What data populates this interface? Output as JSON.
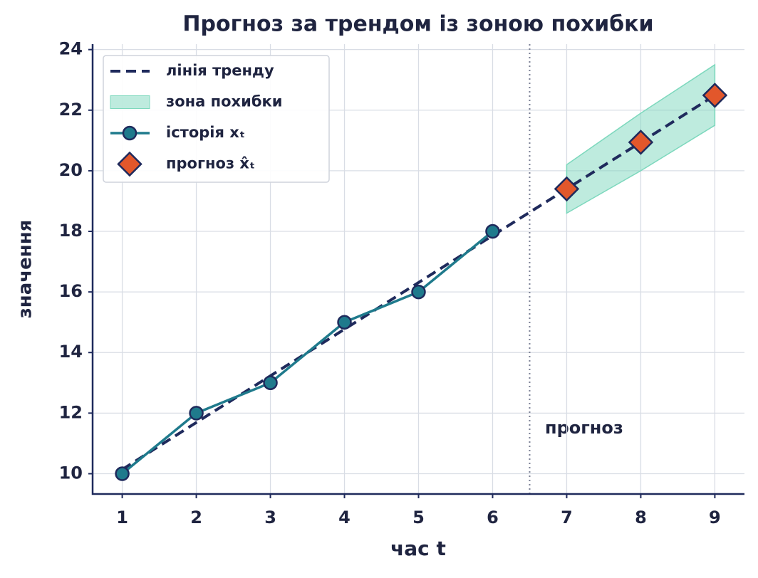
{
  "chart_data": {
    "type": "line",
    "title": "Прогноз за трендом із зоною похибки",
    "x_label": "час t",
    "y_label": "значення",
    "xlim": [
      0.6,
      9.4
    ],
    "ylim": [
      9.33,
      24.18
    ],
    "xticks": [
      1,
      2,
      3,
      4,
      5,
      6,
      7,
      8,
      9
    ],
    "yticks": [
      10,
      12,
      14,
      16,
      18,
      20,
      22,
      24
    ],
    "grid": true,
    "legend": "upper left",
    "vline": 6.5,
    "annotation": "прогноз",
    "series": [
      {
        "name": "лінія тренду",
        "kind": "dashed",
        "color": "#1f2a5c",
        "x": [
          1,
          2,
          3,
          4,
          5,
          6,
          7,
          8,
          9
        ],
        "values": [
          10.14,
          11.69,
          13.23,
          14.77,
          16.31,
          17.86,
          19.4,
          20.94,
          22.49
        ]
      },
      {
        "name": "зона похибки",
        "kind": "band",
        "color": "#7dd8bd",
        "x": [
          7,
          8,
          9
        ],
        "lower": [
          18.6,
          20.0,
          21.5
        ],
        "upper": [
          20.2,
          21.9,
          23.5
        ]
      },
      {
        "name": "історія xₜ",
        "kind": "circle",
        "color": "#1f7a8c",
        "x": [
          1,
          2,
          3,
          4,
          5,
          6
        ],
        "values": [
          10,
          12,
          13,
          15,
          16,
          18
        ]
      },
      {
        "name": "прогноз x̂ₜ",
        "kind": "diamond",
        "color": "#e2572b",
        "x": [
          7,
          8,
          9
        ],
        "values": [
          19.4,
          20.94,
          22.49
        ]
      }
    ]
  }
}
